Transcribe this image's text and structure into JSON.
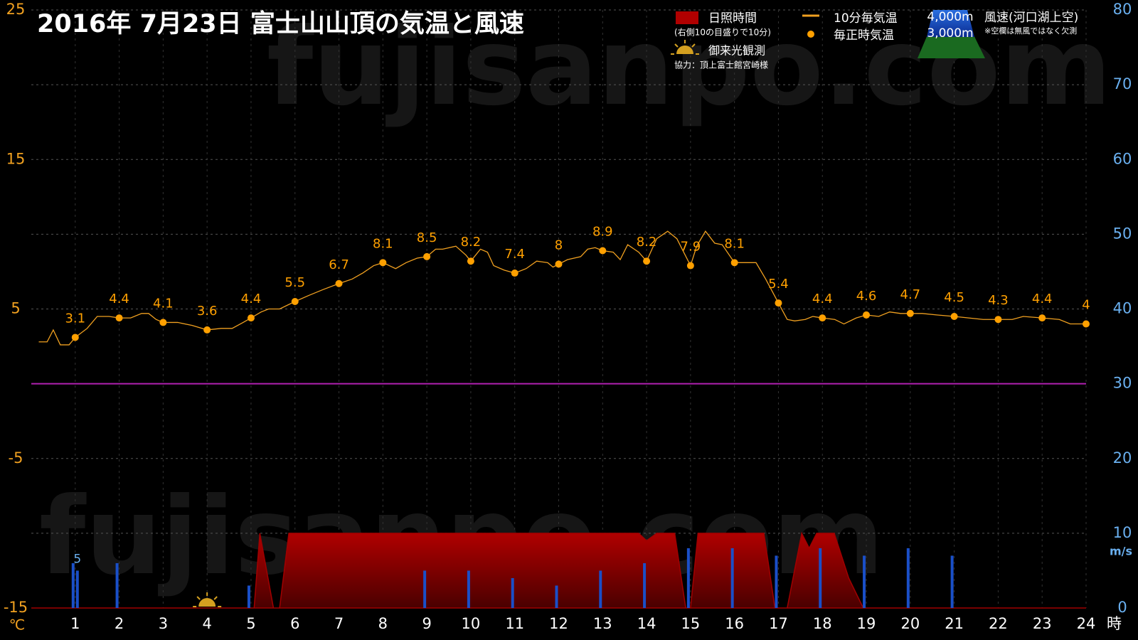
{
  "chart_data": {
    "type": "line",
    "title": "2016年  7月23日   富士山山頂の気温と風速",
    "watermark": "fujisanpo.com",
    "y_label": "℃",
    "x_label": "時",
    "y2_label": "m/s",
    "xlim": [
      0,
      24
    ],
    "xticks": [
      1,
      2,
      3,
      4,
      5,
      6,
      7,
      8,
      9,
      10,
      11,
      12,
      13,
      14,
      15,
      16,
      17,
      18,
      19,
      20,
      21,
      22,
      23,
      24
    ],
    "ylim": [
      -15,
      25
    ],
    "yticks": [
      -15,
      -5,
      5,
      15,
      25
    ],
    "y2lim": [
      0,
      80
    ],
    "y2ticks": [
      0,
      10,
      20,
      30,
      40,
      50,
      60,
      70,
      80
    ],
    "grid": true,
    "zero_line": {
      "value": 0,
      "color": "#b020b0"
    },
    "sunrise_x": 4,
    "legend_notes": {
      "sunshine": "(右側10の目盛りで10分)",
      "sunrise": "御来光観測",
      "credit": "協力：頂上富士館宮崎様",
      "wind": "風速(河口湖上空)",
      "wind_note": "※空欄は無風ではなく欠測"
    },
    "series": [
      {
        "name": "日照時間",
        "type": "area",
        "axis": "y2",
        "color": "#a00000",
        "x": [
          0,
          5.07,
          5.2,
          5.51,
          5.65,
          5.86,
          13.82,
          14,
          14.23,
          14.64,
          14.89,
          15,
          15.17,
          16.67,
          16.92,
          17.2,
          17.53,
          17.7,
          17.87,
          18.27,
          18.6,
          18.93,
          24
        ],
        "values": [
          0,
          0,
          10,
          0,
          0,
          10,
          10,
          9,
          10,
          10,
          0,
          0,
          10,
          10,
          0,
          0,
          10,
          8,
          10,
          10,
          4,
          0,
          0
        ]
      },
      {
        "name": "4,000m",
        "type": "bar",
        "axis": "y2",
        "color": "#1a4fc8",
        "x": [
          1,
          2,
          3,
          4,
          5,
          6,
          7,
          8,
          9,
          10,
          11,
          12,
          13,
          14,
          15,
          16,
          17,
          18,
          19,
          20,
          21,
          22,
          23,
          24
        ],
        "values": [
          6,
          6,
          null,
          null,
          3,
          null,
          null,
          null,
          5,
          5,
          4,
          3,
          5,
          6,
          8,
          8,
          7,
          8,
          7,
          8,
          7,
          null,
          null,
          null
        ]
      },
      {
        "name": "3,000m",
        "type": "bar",
        "axis": "y2",
        "color": "#1a4fc8",
        "x": [
          1,
          2,
          3,
          4,
          5,
          6,
          7,
          8,
          9,
          10,
          11,
          12,
          13,
          14,
          15,
          16,
          17,
          18,
          19,
          20,
          21,
          22,
          23,
          24
        ],
        "values": [
          5,
          null,
          null,
          null,
          null,
          null,
          null,
          null,
          null,
          null,
          null,
          null,
          null,
          null,
          null,
          null,
          null,
          null,
          null,
          null,
          null,
          null,
          null,
          null
        ],
        "value_labels": [
          "5",
          null,
          null,
          null,
          null,
          null,
          null,
          null,
          null,
          null,
          null,
          null,
          null,
          null,
          null,
          null,
          null,
          null,
          null,
          null,
          null,
          null,
          null,
          null
        ]
      },
      {
        "name": "10分毎気温",
        "type": "line",
        "color": "#f0a020",
        "x": [
          0.17,
          0.36,
          0.5,
          0.66,
          0.86,
          1,
          1.27,
          1.5,
          1.77,
          2,
          2.26,
          2.51,
          2.67,
          2.84,
          3,
          3.33,
          3.66,
          4,
          4.32,
          4.57,
          4.82,
          5,
          5.23,
          5.4,
          5.65,
          6,
          6.31,
          6.64,
          7,
          7.3,
          7.54,
          7.79,
          8,
          8.29,
          8.53,
          8.78,
          9,
          9.2,
          9.36,
          9.66,
          9.89,
          10,
          10.22,
          10.38,
          10.52,
          10.76,
          11,
          11.26,
          11.5,
          11.75,
          11.87,
          12,
          12.2,
          12.5,
          12.66,
          12.83,
          13,
          13.24,
          13.4,
          13.57,
          13.82,
          14,
          14.23,
          14.48,
          14.69,
          14.81,
          15,
          15.14,
          15.34,
          15.55,
          15.72,
          16,
          16.21,
          16.49,
          16.71,
          17,
          17.2,
          17.37,
          17.61,
          17.78,
          18,
          18.28,
          18.49,
          18.77,
          19,
          19.28,
          19.53,
          19.78,
          20,
          20.27,
          20.6,
          21,
          21.33,
          21.66,
          22,
          22.32,
          22.57,
          23,
          23.39,
          23.64,
          24
        ],
        "values": [
          2.8,
          2.8,
          3.6,
          2.6,
          2.6,
          3.1,
          3.7,
          4.5,
          4.5,
          4.4,
          4.4,
          4.7,
          4.7,
          4.3,
          4.1,
          4.1,
          3.9,
          3.6,
          3.7,
          3.7,
          4.1,
          4.4,
          4.8,
          5,
          5,
          5.5,
          5.9,
          6.3,
          6.7,
          7,
          7.4,
          7.9,
          8.1,
          7.7,
          8.1,
          8.4,
          8.5,
          9,
          9,
          9.2,
          8.6,
          8.2,
          9,
          8.8,
          7.9,
          7.6,
          7.4,
          7.7,
          8.2,
          8.1,
          7.8,
          8,
          8.3,
          8.5,
          9,
          9.1,
          8.9,
          8.8,
          8.3,
          9.3,
          8.8,
          8.2,
          9.7,
          10.2,
          9.7,
          9,
          7.9,
          9.2,
          10.2,
          9.4,
          9.3,
          8.1,
          8.1,
          8.1,
          7,
          5.4,
          4.3,
          4.2,
          4.3,
          4.5,
          4.4,
          4.3,
          4,
          4.4,
          4.6,
          4.5,
          4.8,
          4.7,
          4.7,
          4.7,
          4.6,
          4.5,
          4.4,
          4.3,
          4.3,
          4.3,
          4.5,
          4.4,
          4.3,
          4,
          4
        ]
      },
      {
        "name": "毎正時気温",
        "type": "scatter",
        "color": "#ffa000",
        "data_labels": true,
        "x": [
          1,
          2,
          3,
          4,
          5,
          6,
          7,
          8,
          9,
          10,
          11,
          12,
          13,
          14,
          15,
          16,
          17,
          18,
          19,
          20,
          21,
          22,
          23,
          24
        ],
        "values": [
          3.1,
          4.4,
          4.1,
          3.6,
          4.4,
          5.5,
          6.7,
          8.1,
          8.5,
          8.2,
          7.4,
          8,
          8.9,
          8.2,
          7.9,
          8.1,
          5.4,
          4.4,
          4.6,
          4.7,
          4.5,
          4.3,
          4.4,
          4
        ]
      }
    ]
  }
}
